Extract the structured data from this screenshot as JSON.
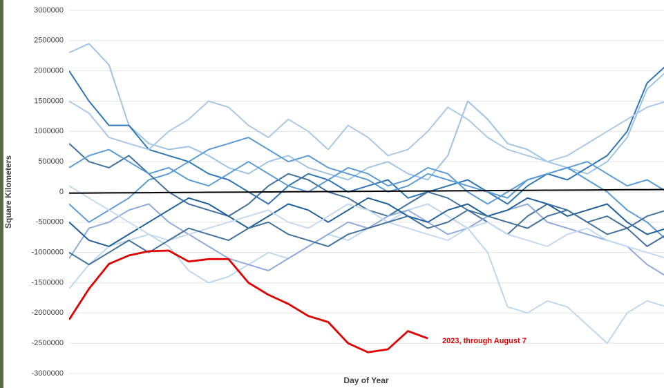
{
  "chart_data": {
    "type": "line",
    "xlabel": "Day of Year",
    "ylabel": "Square Kilometers",
    "annotation": "2023, through August 7",
    "xlim": [
      1,
      365
    ],
    "ylim": [
      -3000000,
      3000000
    ],
    "yticks": [
      3000000,
      2500000,
      2000000,
      1500000,
      1000000,
      500000,
      0,
      -500000,
      -1000000,
      -1500000,
      -2000000,
      -2500000,
      -3000000
    ],
    "grid": true,
    "x": [
      1,
      13,
      25,
      37,
      49,
      61,
      73,
      85,
      97,
      109,
      121,
      133,
      145,
      157,
      169,
      181,
      193,
      205,
      217,
      229,
      241,
      253,
      265,
      277,
      289,
      301,
      313,
      325,
      337,
      349,
      361
    ],
    "series": [
      {
        "color": "#9dc3e6",
        "values": [
          2300000,
          2450000,
          2100000,
          1100000,
          800000,
          700000,
          750000,
          600000,
          400000,
          300000,
          500000,
          600000,
          400000,
          300000,
          200000,
          400000,
          500000,
          300000,
          200000,
          600000,
          1500000,
          1200000,
          800000,
          700000,
          500000,
          400000,
          300000,
          500000,
          900000,
          1700000,
          2000000
        ]
      },
      {
        "color": "#2e75b6",
        "values": [
          2000000,
          1500000,
          1100000,
          1100000,
          700000,
          600000,
          500000,
          300000,
          200000,
          0,
          -200000,
          100000,
          300000,
          200000,
          0,
          100000,
          200000,
          -100000,
          0,
          100000,
          200000,
          0,
          -200000,
          100000,
          300000,
          200000,
          400000,
          600000,
          1000000,
          1800000,
          2100000
        ]
      },
      {
        "color": "#5b9bd5",
        "values": [
          -200000,
          -500000,
          -300000,
          -100000,
          200000,
          300000,
          500000,
          700000,
          800000,
          900000,
          700000,
          500000,
          600000,
          400000,
          300000,
          200000,
          0,
          100000,
          300000,
          200000,
          100000,
          0,
          -100000,
          200000,
          300000,
          400000,
          200000,
          0,
          -300000,
          -500000,
          -800000
        ]
      },
      {
        "color": "#bdd7ee",
        "values": [
          -1600000,
          -1200000,
          -900000,
          -800000,
          -700000,
          -900000,
          -1300000,
          -1500000,
          -1400000,
          -1200000,
          -1000000,
          -1100000,
          -900000,
          -700000,
          -800000,
          -600000,
          -500000,
          -300000,
          -200000,
          -400000,
          -600000,
          -1000000,
          -1900000,
          -2000000,
          -1800000,
          -1900000,
          -2200000,
          -2500000,
          -2000000,
          -1800000,
          -1900000
        ]
      },
      {
        "color": "#41719c",
        "values": [
          800000,
          500000,
          400000,
          600000,
          300000,
          0,
          -200000,
          -300000,
          -400000,
          -200000,
          100000,
          300000,
          200000,
          0,
          -100000,
          -300000,
          -400000,
          -200000,
          0,
          -100000,
          -300000,
          -500000,
          -700000,
          -400000,
          -200000,
          -300000,
          -500000,
          -400000,
          -600000,
          -900000,
          -700000
        ]
      },
      {
        "color": "#8faadc",
        "values": [
          -1100000,
          -600000,
          -500000,
          -300000,
          -200000,
          -500000,
          -700000,
          -900000,
          -1100000,
          -1200000,
          -1300000,
          -1100000,
          -900000,
          -700000,
          -500000,
          -600000,
          -400000,
          -300000,
          -500000,
          -700000,
          -600000,
          -400000,
          -300000,
          -200000,
          -500000,
          -600000,
          -700000,
          -800000,
          -900000,
          -1200000,
          -1400000
        ]
      },
      {
        "color": "#a9c8e8",
        "values": [
          1500000,
          1300000,
          900000,
          800000,
          700000,
          1000000,
          1200000,
          1500000,
          1400000,
          1100000,
          900000,
          1200000,
          1000000,
          700000,
          1100000,
          900000,
          600000,
          700000,
          1000000,
          1400000,
          1200000,
          900000,
          700000,
          600000,
          500000,
          600000,
          800000,
          1000000,
          1200000,
          1400000,
          1500000
        ]
      },
      {
        "color": "#1f5f99",
        "values": [
          -500000,
          -800000,
          -900000,
          -700000,
          -500000,
          -300000,
          -100000,
          -200000,
          -400000,
          -600000,
          -400000,
          -200000,
          -300000,
          -500000,
          -300000,
          -100000,
          -200000,
          -400000,
          -500000,
          -300000,
          -200000,
          -400000,
          -300000,
          -100000,
          -200000,
          -400000,
          -300000,
          -200000,
          -500000,
          -700000,
          -600000
        ]
      },
      {
        "color": "#c5d9f1",
        "values": [
          100000,
          -100000,
          -300000,
          -500000,
          -700000,
          -800000,
          -700000,
          -600000,
          -500000,
          -400000,
          -300000,
          -500000,
          -600000,
          -400000,
          -200000,
          -300000,
          -500000,
          -600000,
          -700000,
          -800000,
          -600000,
          -500000,
          -700000,
          -800000,
          -900000,
          -700000,
          -600000,
          -800000,
          -900000,
          -1000000,
          -1100000
        ]
      },
      {
        "color": "#5b9bd5",
        "values": [
          400000,
          600000,
          700000,
          500000,
          300000,
          400000,
          200000,
          100000,
          300000,
          500000,
          300000,
          100000,
          0,
          200000,
          400000,
          300000,
          100000,
          200000,
          400000,
          300000,
          0,
          -200000,
          0,
          200000,
          300000,
          400000,
          500000,
          300000,
          100000,
          200000,
          0
        ]
      },
      {
        "color": "#41719c",
        "values": [
          -1000000,
          -1200000,
          -1000000,
          -800000,
          -1000000,
          -800000,
          -600000,
          -700000,
          -800000,
          -600000,
          -500000,
          -700000,
          -800000,
          -900000,
          -700000,
          -600000,
          -500000,
          -400000,
          -600000,
          -500000,
          -300000,
          -400000,
          -500000,
          -600000,
          -400000,
          -300000,
          -500000,
          -700000,
          -600000,
          -400000,
          -300000
        ]
      },
      {
        "color": "#000000",
        "values": [
          -20000,
          -18000,
          -16000,
          -14000,
          -12000,
          -10000,
          -8000,
          -6000,
          -4000,
          -2000,
          0,
          2000,
          4000,
          6000,
          8000,
          10000,
          12000,
          14000,
          16000,
          18000,
          20000,
          22000,
          24000,
          26000,
          28000,
          30000,
          32000,
          34000,
          36000,
          38000,
          40000
        ]
      },
      {
        "color": "#e00000",
        "values": [
          -2110000,
          -1600000,
          -1190000,
          -1050000,
          -980000,
          -970000,
          -1150000,
          -1110000,
          -1110000,
          -1500000,
          -1700000,
          -1850000,
          -2050000,
          -2150000,
          -2500000,
          -2650000,
          -2600000,
          -2300000,
          -2420000,
          null,
          null,
          null,
          null,
          null,
          null,
          null,
          null,
          null,
          null,
          null,
          null
        ]
      }
    ]
  }
}
